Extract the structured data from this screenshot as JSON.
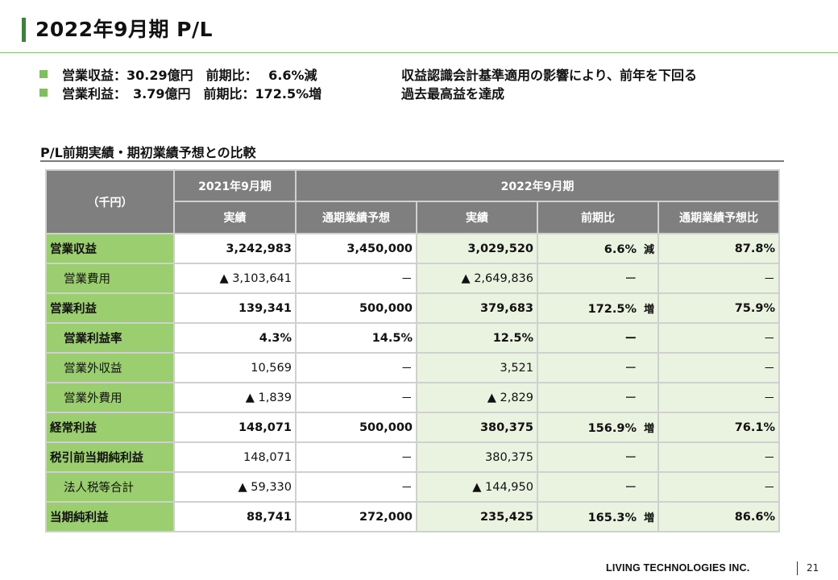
{
  "title": "2022年9月期 P/L",
  "bullets": [
    {
      "text": "営業収益：30.29億円　前期比：　 6.6%減",
      "note": "収益認識会計基準適用の影響により、前年を下回る"
    },
    {
      "text": "営業利益：　3.79億円　前期比：172.5%増",
      "note": "過去最高益を達成"
    }
  ],
  "section_title": "P/L前期実績・期初業績予想との比較",
  "table": {
    "unit_label": "（千円）",
    "group_prev": "2021年9月期",
    "group_curr": "2022年9月期",
    "col_prev_actual": "実績",
    "col_forecast": "通期業績予想",
    "col_curr_actual": "実績",
    "col_yoy": "前期比",
    "col_vs_forecast": "通期業績予想比",
    "rows": [
      {
        "label": "営業収益",
        "prev": "3,242,983",
        "forecast": "3,450,000",
        "actual": "3,029,520",
        "yoy": "6.6%",
        "dir": "減",
        "vs": "87.8%"
      },
      {
        "label": "営業費用",
        "prev": "▲ 3,103,641",
        "forecast": "－",
        "actual": "▲ 2,649,836",
        "yoy": "ー",
        "dir": "",
        "vs": "－"
      },
      {
        "label": "営業利益",
        "prev": "139,341",
        "forecast": "500,000",
        "actual": "379,683",
        "yoy": "172.5%",
        "dir": "増",
        "vs": "75.9%"
      },
      {
        "label": "営業利益率",
        "prev": "4.3%",
        "forecast": "14.5%",
        "actual": "12.5%",
        "yoy": "ー",
        "dir": "",
        "vs": "－"
      },
      {
        "label": "営業外収益",
        "prev": "10,569",
        "forecast": "－",
        "actual": "3,521",
        "yoy": "ー",
        "dir": "",
        "vs": "－"
      },
      {
        "label": "営業外費用",
        "prev": "▲ 1,839",
        "forecast": "－",
        "actual": "▲ 2,829",
        "yoy": "ー",
        "dir": "",
        "vs": "－"
      },
      {
        "label": "経常利益",
        "prev": "148,071",
        "forecast": "500,000",
        "actual": "380,375",
        "yoy": "156.9%",
        "dir": "増",
        "vs": "76.1%"
      },
      {
        "label": "税引前当期純利益",
        "prev": "148,071",
        "forecast": "－",
        "actual": "380,375",
        "yoy": "ー",
        "dir": "",
        "vs": "－"
      },
      {
        "label": "法人税等合計",
        "prev": "▲ 59,330",
        "forecast": "－",
        "actual": "▲ 144,950",
        "yoy": "ー",
        "dir": "",
        "vs": "－"
      },
      {
        "label": "当期純利益",
        "prev": "88,741",
        "forecast": "272,000",
        "actual": "235,425",
        "yoy": "165.3%",
        "dir": "増",
        "vs": "86.6%"
      }
    ]
  },
  "footer": {
    "company": "LIVING TECHNOLOGIES INC.",
    "page": "21"
  },
  "colors": {
    "accent": "#2e8b2e",
    "label_green": "#9bce6e",
    "actual_bg": "#eaf3df",
    "header_gray": "#7f7f7f"
  }
}
